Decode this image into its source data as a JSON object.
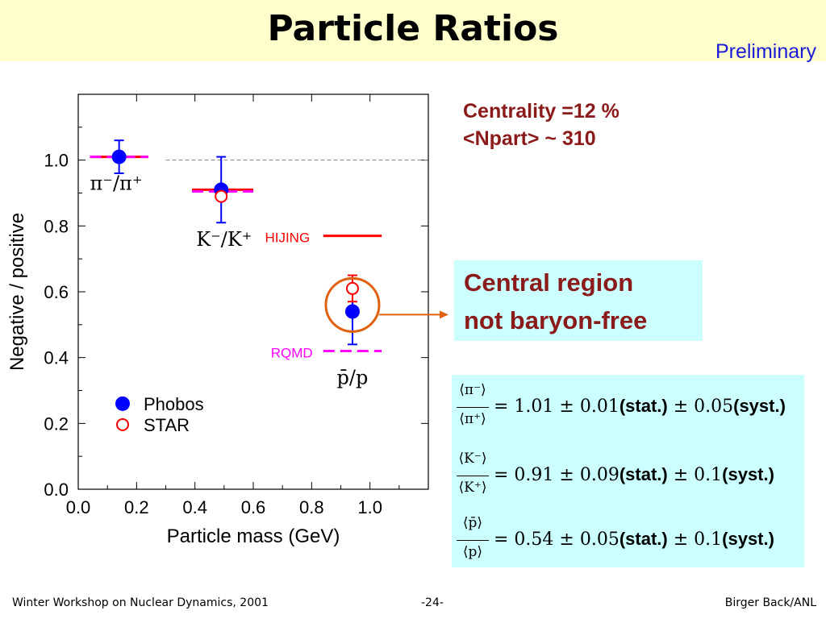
{
  "slide": {
    "title": "Particle Ratios",
    "preliminary": "Preliminary"
  },
  "centrality": {
    "line1": "Centrality =12 %",
    "line2": "<Npart> ~ 310"
  },
  "callout": {
    "line1": "Central region",
    "line2": "not baryon-free"
  },
  "formulas": [
    {
      "num": "⟨π⁻⟩",
      "den": "⟨π⁺⟩",
      "eq": "= 1.01 ± 0.01",
      "stat": "(stat.)",
      "pm": " ± 0.05",
      "syst": "(syst.)"
    },
    {
      "num": "⟨K⁻⟩",
      "den": "⟨K⁺⟩",
      "eq": "= 0.91 ± 0.09",
      "stat": "(stat.)",
      "pm": " ± 0.1",
      "syst": "(syst.)"
    },
    {
      "num": "⟨p̄⟩",
      "den": "⟨p⟩",
      "eq": "= 0.54 ± 0.05",
      "stat": "(stat.)",
      "pm": " ± 0.1",
      "syst": "(syst.)"
    }
  ],
  "footer": {
    "left": "Winter Workshop on Nuclear Dynamics, 2001",
    "center": "-24-",
    "right": "Birger Back/ANL"
  },
  "chart_data": {
    "type": "scatter",
    "xlabel": "Particle mass (GeV)",
    "ylabel": "Negative / positive",
    "xlim": [
      0.0,
      1.2
    ],
    "ylim": [
      0.0,
      1.2
    ],
    "xticks": [
      "0.0",
      "0.2",
      "0.4",
      "0.6",
      "0.8",
      "1.0"
    ],
    "yticks": [
      "0.0",
      "0.2",
      "0.4",
      "0.6",
      "0.8",
      "1.0"
    ],
    "grid": false,
    "legend_position": "bottom-left",
    "reference_line_y": 1.0,
    "series": [
      {
        "name": "Phobos",
        "color": "#0000ff",
        "marker": "filled-circle",
        "points": [
          {
            "x": 0.14,
            "y": 1.01,
            "err": 0.05
          },
          {
            "x": 0.49,
            "y": 0.91,
            "err": 0.1
          },
          {
            "x": 0.94,
            "y": 0.54,
            "err": 0.1
          }
        ]
      },
      {
        "name": "STAR",
        "color": "#ff0000",
        "marker": "open-circle",
        "points": [
          {
            "x": 0.49,
            "y": 0.89
          },
          {
            "x": 0.94,
            "y": 0.61,
            "err": 0.04
          }
        ]
      }
    ],
    "model_lines": [
      {
        "x0": 0.04,
        "x1": 0.24,
        "y": 1.01,
        "color": "#ff0000",
        "style": "solid"
      },
      {
        "x0": 0.04,
        "x1": 0.24,
        "y": 1.01,
        "color": "#ff00ff",
        "style": "dashed"
      },
      {
        "x0": 0.39,
        "x1": 0.6,
        "y": 0.91,
        "color": "#ff0000",
        "style": "solid"
      },
      {
        "x0": 0.39,
        "x1": 0.6,
        "y": 0.905,
        "color": "#ff00ff",
        "style": "dashed"
      },
      {
        "x0": 0.84,
        "x1": 1.04,
        "y": 0.77,
        "color": "#ff0000",
        "style": "solid"
      },
      {
        "x0": 0.84,
        "x1": 1.04,
        "y": 0.42,
        "color": "#ff00ff",
        "style": "dashed"
      }
    ],
    "model_labels": [
      {
        "text": "HIJING",
        "x": 0.64,
        "y": 0.765,
        "color": "#ff0000"
      },
      {
        "text": "RQMD",
        "x": 0.66,
        "y": 0.415,
        "color": "#ff00ff"
      }
    ],
    "annotations": [
      {
        "text": "π⁻/π⁺",
        "x": 0.13,
        "y": 0.91
      },
      {
        "text": "K⁻/K⁺",
        "x": 0.5,
        "y": 0.74
      },
      {
        "text": "p̄/p",
        "x": 0.94,
        "y": 0.32
      }
    ],
    "highlight_circle": {
      "x": 0.94,
      "y": 0.56,
      "color": "#e06010"
    },
    "colors": {
      "hijing": "#ff0000",
      "rqmd": "#ff00ff",
      "phobos": "#0000ff",
      "star": "#ff0000",
      "arrow": "#e06010"
    }
  }
}
